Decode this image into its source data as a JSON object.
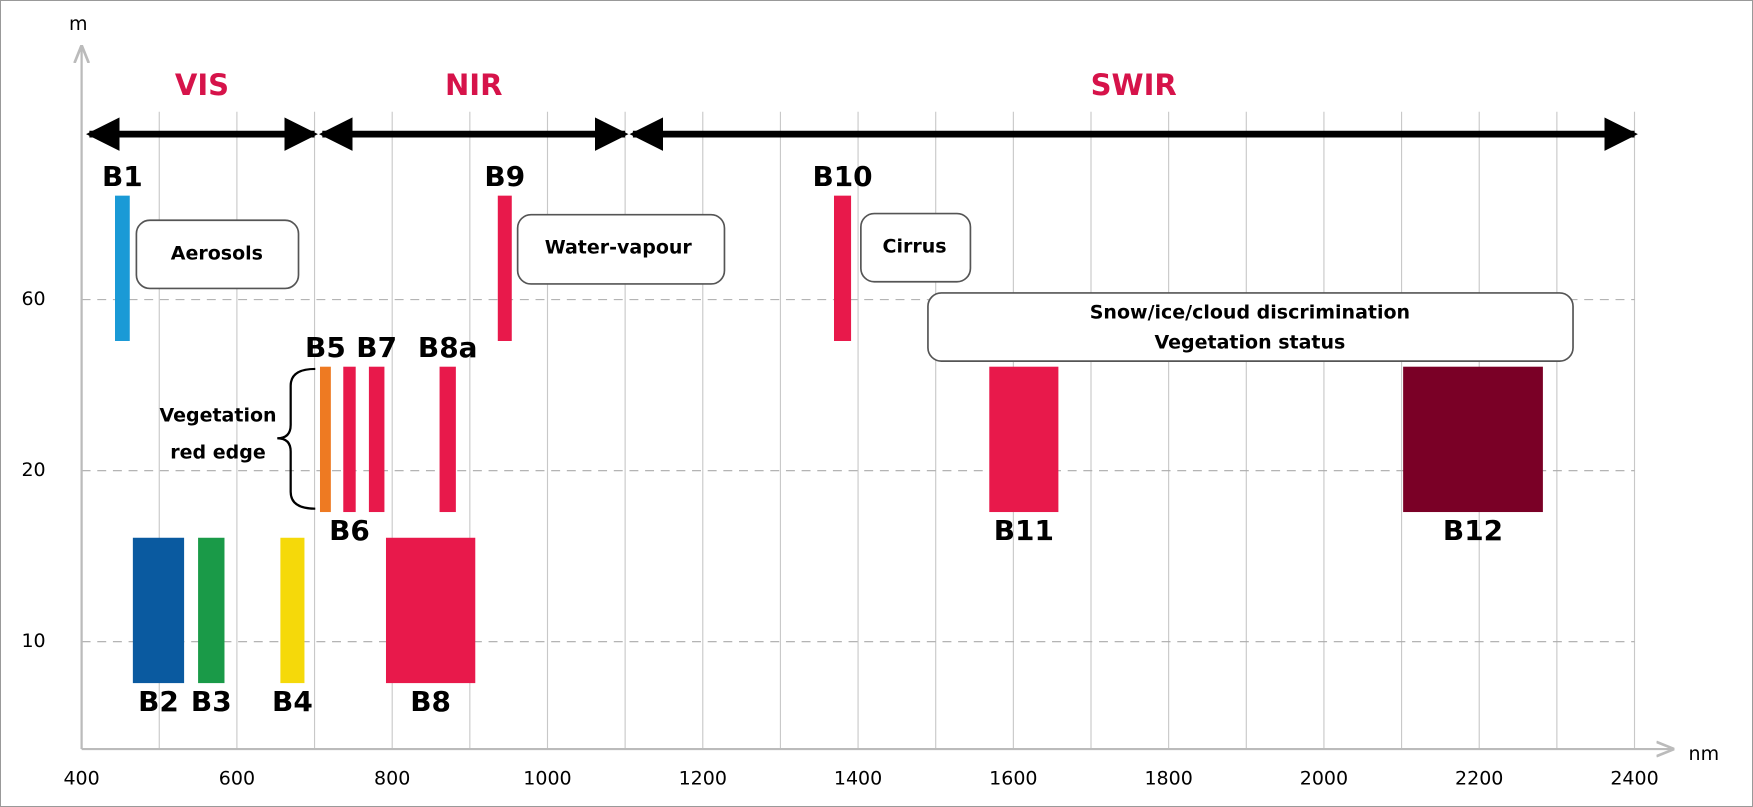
{
  "chart_data": {
    "type": "spectral-bands",
    "y_axis_label": "m",
    "x_axis_label": "nm",
    "xlim": [
      400,
      2450
    ],
    "xticks": [
      400,
      600,
      800,
      1000,
      1200,
      1400,
      1600,
      1800,
      2000,
      2200,
      2400
    ],
    "xgrid": [
      500,
      600,
      700,
      800,
      900,
      1000,
      1100,
      1200,
      1300,
      1400,
      1500,
      1600,
      1700,
      1800,
      1900,
      2000,
      2100,
      2200,
      2300,
      2400
    ],
    "y_scale": "category",
    "yticks": [
      10,
      20,
      60
    ],
    "regions": [
      {
        "name": "VIS",
        "range": [
          410,
          700
        ]
      },
      {
        "name": "NIR",
        "range": [
          710,
          1100
        ]
      },
      {
        "name": "SWIR",
        "range": [
          1110,
          2400
        ]
      }
    ],
    "bands": [
      {
        "name": "B1",
        "range": [
          443,
          462
        ],
        "resolution": 60,
        "color": "#1a9ad6",
        "label_position": "top"
      },
      {
        "name": "B2",
        "range": [
          466,
          532
        ],
        "resolution": 10,
        "color": "#0a5aa0",
        "label_position": "bottom"
      },
      {
        "name": "B3",
        "range": [
          550,
          584
        ],
        "resolution": 10,
        "color": "#1a9a48",
        "label_position": "bottom"
      },
      {
        "name": "B4",
        "range": [
          656,
          687
        ],
        "resolution": 10,
        "color": "#f5d90a",
        "label_position": "bottom"
      },
      {
        "name": "B5",
        "range": [
          707,
          721
        ],
        "resolution": 20,
        "color": "#ee7a22",
        "label_position": "top"
      },
      {
        "name": "B6",
        "range": [
          737,
          753
        ],
        "resolution": 20,
        "color": "#e8194b",
        "label_position": "bottom"
      },
      {
        "name": "B7",
        "range": [
          770,
          790
        ],
        "resolution": 20,
        "color": "#e8194b",
        "label_position": "top"
      },
      {
        "name": "B8a",
        "range": [
          861,
          882
        ],
        "resolution": 20,
        "color": "#e8194b",
        "label_position": "top"
      },
      {
        "name": "B8",
        "range": [
          792,
          907
        ],
        "resolution": 10,
        "color": "#e8194b",
        "label_position": "bottom"
      },
      {
        "name": "B9",
        "range": [
          936,
          954
        ],
        "resolution": 60,
        "color": "#e8194b",
        "label_position": "top"
      },
      {
        "name": "B10",
        "range": [
          1369,
          1391
        ],
        "resolution": 60,
        "color": "#e8194b",
        "label_position": "top"
      },
      {
        "name": "B11",
        "range": [
          1569,
          1658
        ],
        "resolution": 20,
        "color": "#e8194b",
        "label_position": "bottom"
      },
      {
        "name": "B12",
        "range": [
          2102,
          2282
        ],
        "resolution": 20,
        "color": "#7a0026",
        "label_position": "bottom"
      }
    ],
    "annotations": [
      {
        "lines": [
          "Aerosols"
        ]
      },
      {
        "lines": [
          "Water-vapour"
        ]
      },
      {
        "lines": [
          "Cirrus"
        ]
      },
      {
        "lines": [
          "Snow/ice/cloud discrimination",
          "Vegetation status"
        ]
      },
      {
        "lines": [
          "Vegetation",
          "red edge"
        ]
      }
    ]
  }
}
